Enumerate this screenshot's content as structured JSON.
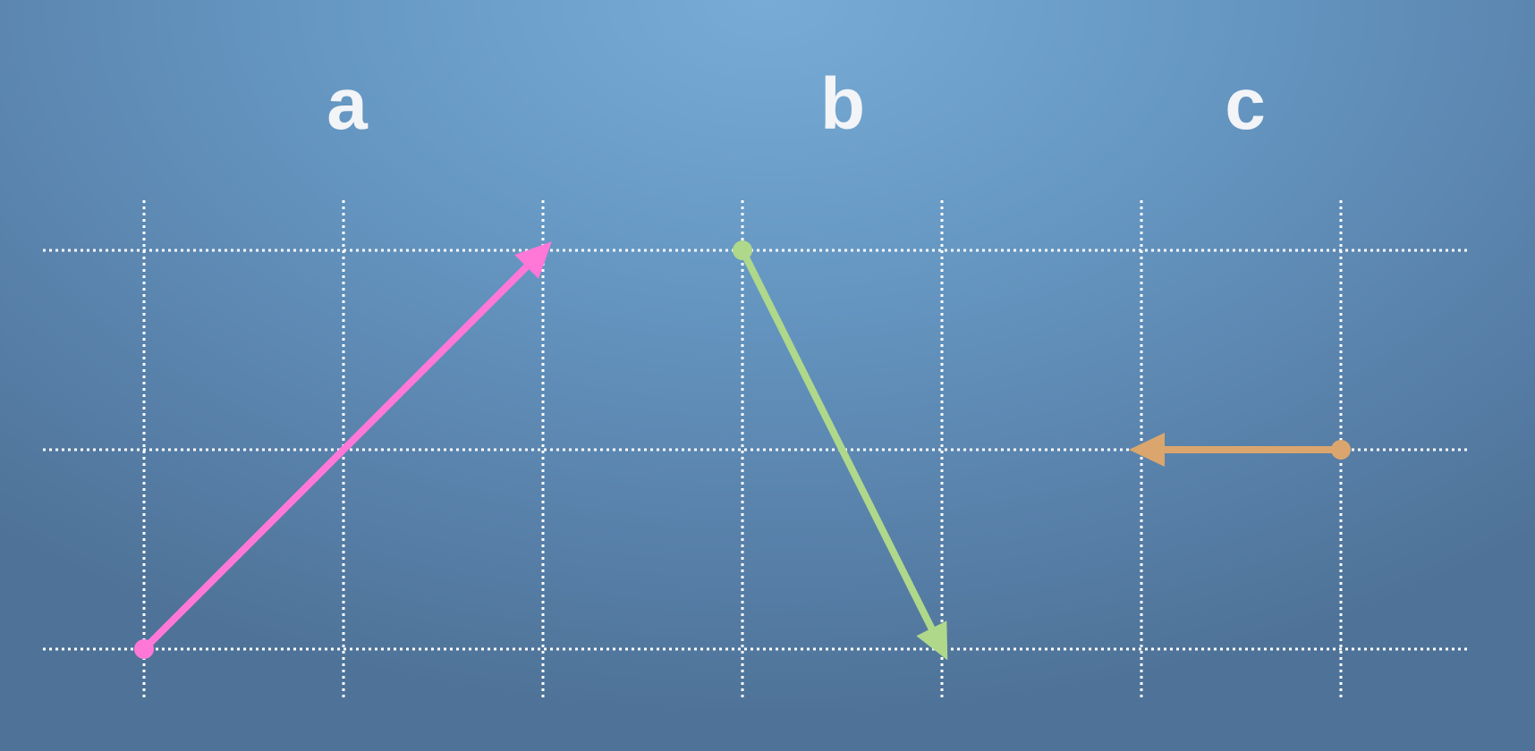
{
  "labels": {
    "a": "a",
    "b": "b",
    "c": "c"
  },
  "grid": {
    "columns": 7,
    "rows": 3,
    "line_color": "#ffffff",
    "line_style": "dotted"
  },
  "vectors": [
    {
      "id": "a",
      "from": [
        0,
        0
      ],
      "to": [
        2,
        2
      ],
      "color": "#ff78d8"
    },
    {
      "id": "b",
      "from": [
        3,
        2
      ],
      "to": [
        4,
        0
      ],
      "color": "#afd88a"
    },
    {
      "id": "c",
      "from": [
        6,
        1
      ],
      "to": [
        5,
        1
      ],
      "color": "#dba66d"
    }
  ]
}
